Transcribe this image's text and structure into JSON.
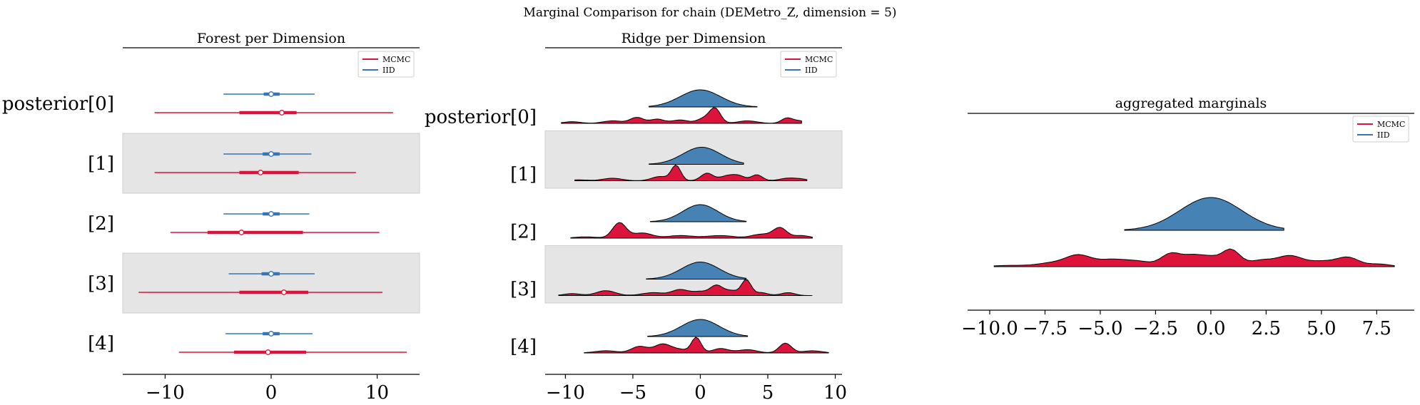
{
  "suptitle": "Marginal Comparison for chain (DEMetro_Z, dimension = 5)",
  "legend": {
    "entries": [
      {
        "label": "MCMC",
        "color": "#dc143c"
      },
      {
        "label": "IID",
        "color": "#3674b3"
      }
    ],
    "placement": "top-right"
  },
  "colors": {
    "mcmc": "#dc143c",
    "iid": "#3674b3",
    "iid_fill": "#4682b4",
    "band": "#e5e5e5",
    "edge": "#000000"
  },
  "chart_data": [
    {
      "type": "forest",
      "title": "Forest per Dimension",
      "xlim": [
        -14,
        14
      ],
      "xticks": [
        -10,
        0,
        10
      ],
      "grid": false,
      "ylabels": [
        "posterior[0]",
        "[1]",
        "[2]",
        "[3]",
        "[4]"
      ],
      "shaded_rows": [
        1,
        3
      ],
      "series": [
        {
          "name": "MCMC",
          "hdi": [
            [
              -11,
              11.5
            ],
            [
              -11,
              8
            ],
            [
              -9.5,
              10.2
            ],
            [
              -12.5,
              10.5
            ],
            [
              -8.7,
              12.8
            ]
          ],
          "iqr": [
            [
              -3,
              2.4
            ],
            [
              -3,
              2.6
            ],
            [
              -6,
              3
            ],
            [
              -3,
              3.5
            ],
            [
              -3.5,
              3.3
            ]
          ],
          "center": [
            1,
            -1,
            -2.8,
            1.2,
            -0.3
          ]
        },
        {
          "name": "IID",
          "hdi": [
            [
              -4.5,
              4.1
            ],
            [
              -4.5,
              3.8
            ],
            [
              -4.5,
              3.6
            ],
            [
              -4,
              4.1
            ],
            [
              -4.3,
              3.9
            ]
          ],
          "iqr": [
            [
              -0.7,
              0.8
            ],
            [
              -0.8,
              0.8
            ],
            [
              -0.8,
              0.8
            ],
            [
              -0.9,
              0.8
            ],
            [
              -0.8,
              0.8
            ]
          ],
          "center": [
            0,
            0,
            0,
            0,
            0
          ]
        }
      ]
    },
    {
      "type": "ridge",
      "title": "Ridge per Dimension",
      "xlim": [
        -11.5,
        10.5
      ],
      "xticks": [
        -10,
        -5,
        0,
        5,
        10
      ],
      "grid": false,
      "ylabels": [
        "posterior[0]",
        "[1]",
        "[2]",
        "[3]",
        "[4]"
      ],
      "shaded_rows": [
        1,
        3
      ],
      "series": [
        {
          "name": "IID",
          "rows": [
            {
              "range": [
                -3.8,
                4.2
              ],
              "peaks": [
                [
                  0,
                  1.0,
                  1.5
                ]
              ]
            },
            {
              "range": [
                -3.8,
                3.2
              ],
              "peaks": [
                [
                  0.1,
                  1.0,
                  1.4
                ]
              ]
            },
            {
              "range": [
                -3.7,
                3.4
              ],
              "peaks": [
                [
                  0,
                  1.0,
                  1.3
                ]
              ]
            },
            {
              "range": [
                -4,
                3.4
              ],
              "peaks": [
                [
                  0,
                  1.0,
                  1.4
                ]
              ]
            },
            {
              "range": [
                -3.9,
                3.5
              ],
              "peaks": [
                [
                  0,
                  1.0,
                  1.4
                ]
              ]
            }
          ]
        },
        {
          "name": "MCMC",
          "rows": [
            {
              "range": [
                -10.3,
                7.5
              ],
              "peaks": [
                [
                  -9.5,
                  0.1,
                  0.6
                ],
                [
                  -6.5,
                  0.15,
                  0.7
                ],
                [
                  -4.7,
                  0.35,
                  0.5
                ],
                [
                  -3.2,
                  0.25,
                  0.5
                ],
                [
                  -1.5,
                  0.2,
                  0.6
                ],
                [
                  0.3,
                  0.3,
                  0.5
                ],
                [
                  1.1,
                  0.85,
                  0.4
                ],
                [
                  3.5,
                  0.15,
                  0.7
                ],
                [
                  6.4,
                  0.3,
                  0.4
                ],
                [
                  7.3,
                  0.15,
                  0.5
                ]
              ]
            },
            {
              "range": [
                -9.3,
                7.9
              ],
              "peaks": [
                [
                  -9,
                  0.05,
                  0.7
                ],
                [
                  -6.5,
                  0.15,
                  0.7
                ],
                [
                  -3,
                  0.25,
                  0.6
                ],
                [
                  -1.8,
                  0.9,
                  0.35
                ],
                [
                  0.5,
                  0.45,
                  0.45
                ],
                [
                  1.9,
                  0.25,
                  0.5
                ],
                [
                  2.8,
                  0.3,
                  0.5
                ],
                [
                  4.2,
                  0.35,
                  0.4
                ],
                [
                  6.5,
                  0.15,
                  0.6
                ],
                [
                  7.5,
                  0.08,
                  0.5
                ]
              ]
            },
            {
              "range": [
                -9.6,
                8.3
              ],
              "peaks": [
                [
                  -8.5,
                  0.05,
                  0.8
                ],
                [
                  -6,
                  0.6,
                  0.5
                ],
                [
                  -4.3,
                  0.2,
                  0.7
                ],
                [
                  -1.5,
                  0.1,
                  1.0
                ],
                [
                  1.5,
                  0.1,
                  1.0
                ],
                [
                  4.5,
                  0.15,
                  0.7
                ],
                [
                  5.9,
                  0.4,
                  0.5
                ],
                [
                  7.5,
                  0.1,
                  0.6
                ]
              ]
            },
            {
              "range": [
                -10.5,
                8.3
              ],
              "peaks": [
                [
                  -9.5,
                  0.1,
                  0.6
                ],
                [
                  -7,
                  0.25,
                  0.7
                ],
                [
                  -3.5,
                  0.15,
                  0.8
                ],
                [
                  -1.5,
                  0.3,
                  0.6
                ],
                [
                  0,
                  0.2,
                  0.6
                ],
                [
                  1.2,
                  0.5,
                  0.45
                ],
                [
                  2.3,
                  0.25,
                  0.5
                ],
                [
                  3.4,
                  0.8,
                  0.35
                ],
                [
                  4.5,
                  0.15,
                  0.5
                ],
                [
                  6.5,
                  0.15,
                  0.5
                ]
              ]
            },
            {
              "range": [
                -8.6,
                9.5
              ],
              "peaks": [
                [
                  -7,
                  0.1,
                  0.8
                ],
                [
                  -4.5,
                  0.3,
                  0.6
                ],
                [
                  -2.8,
                  0.4,
                  0.6
                ],
                [
                  -1.5,
                  0.15,
                  0.6
                ],
                [
                  -0.3,
                  0.7,
                  0.35
                ],
                [
                  1.5,
                  0.2,
                  0.6
                ],
                [
                  3.5,
                  0.15,
                  0.7
                ],
                [
                  6.3,
                  0.45,
                  0.45
                ],
                [
                  8.3,
                  0.1,
                  0.7
                ]
              ]
            }
          ]
        }
      ]
    },
    {
      "type": "ridge",
      "title": "aggregated marginals",
      "xlim": [
        -11,
        9.2
      ],
      "xticks": [
        -10.0,
        -7.5,
        -5.0,
        -2.5,
        0.0,
        2.5,
        5.0,
        7.5
      ],
      "xtick_labels": [
        "−10.0",
        "−7.5",
        "−5.0",
        "−2.5",
        "0.0",
        "2.5",
        "5.0",
        "7.5"
      ],
      "grid": false,
      "ylabels": [],
      "series": [
        {
          "name": "IID",
          "range": [
            -3.9,
            3.3
          ],
          "peaks": [
            [
              0,
              1.0,
              1.4
            ]
          ]
        },
        {
          "name": "MCMC",
          "range": [
            -9.8,
            8.3
          ],
          "peaks": [
            [
              -9,
              0.05,
              0.8
            ],
            [
              -7.3,
              0.12,
              0.6
            ],
            [
              -6,
              0.45,
              0.6
            ],
            [
              -4.5,
              0.25,
              0.6
            ],
            [
              -3.3,
              0.2,
              0.6
            ],
            [
              -1.8,
              0.5,
              0.45
            ],
            [
              -0.8,
              0.4,
              0.45
            ],
            [
              0,
              0.3,
              0.4
            ],
            [
              0.9,
              0.65,
              0.4
            ],
            [
              2.3,
              0.25,
              0.6
            ],
            [
              3.6,
              0.4,
              0.55
            ],
            [
              5,
              0.2,
              0.6
            ],
            [
              6.2,
              0.35,
              0.5
            ],
            [
              7.6,
              0.1,
              0.5
            ]
          ]
        }
      ]
    }
  ]
}
